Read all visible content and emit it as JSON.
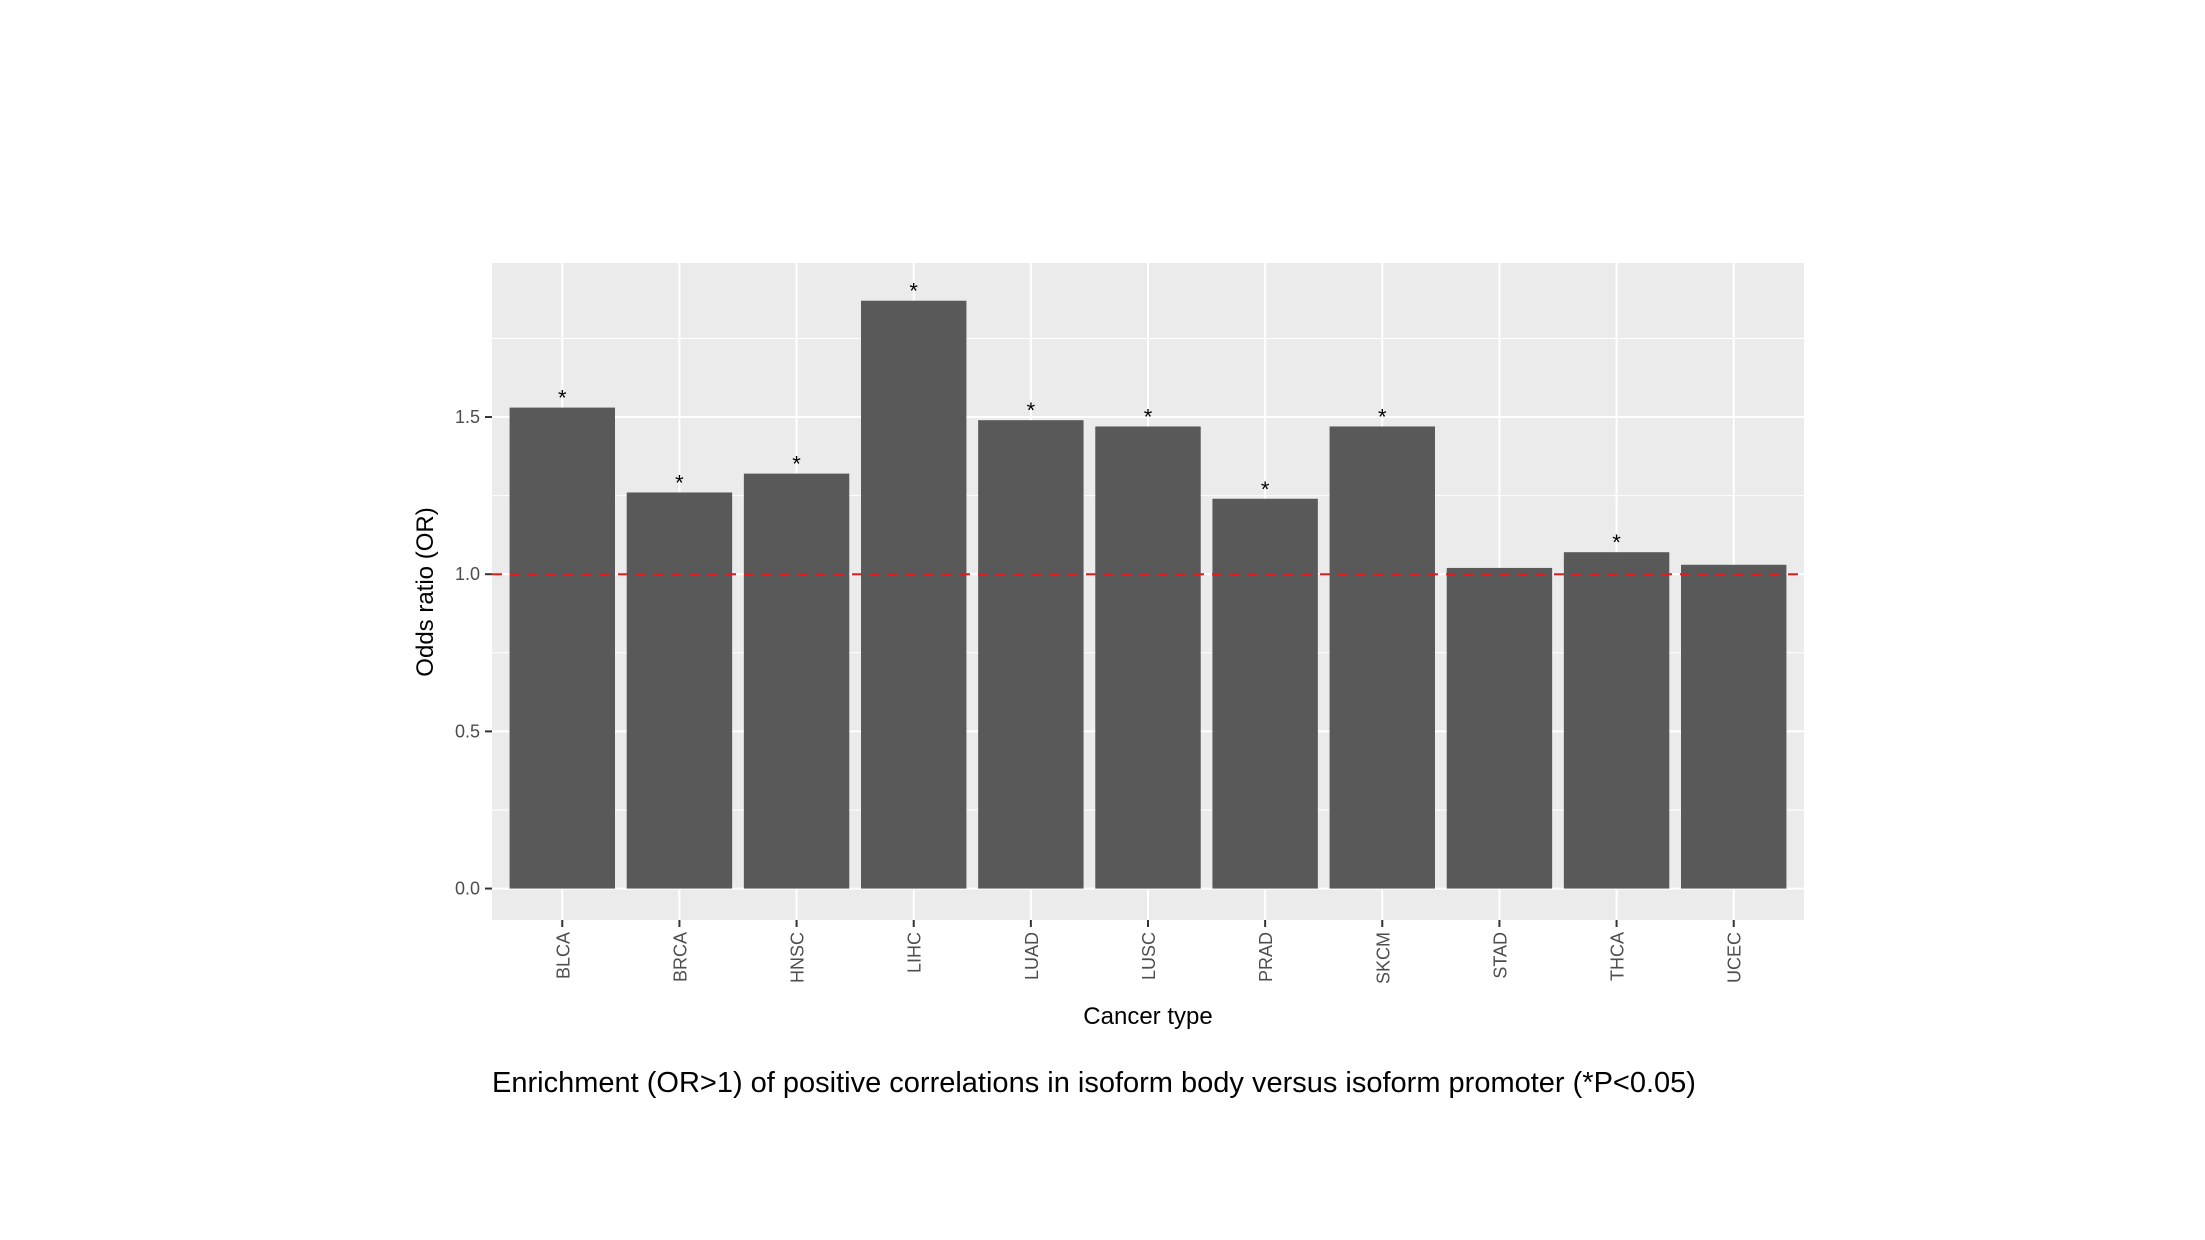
{
  "chart_data": {
    "type": "bar",
    "categories": [
      "BLCA",
      "BRCA",
      "HNSC",
      "LIHC",
      "LUAD",
      "LUSC",
      "PRAD",
      "SKCM",
      "STAD",
      "THCA",
      "UCEC"
    ],
    "values": [
      1.53,
      1.26,
      1.32,
      1.87,
      1.49,
      1.47,
      1.24,
      1.47,
      1.02,
      1.07,
      1.03
    ],
    "significance": [
      "*",
      "*",
      "*",
      "*",
      "*",
      "*",
      "*",
      "*",
      "",
      "*",
      ""
    ],
    "xlabel": "Cancer type",
    "ylabel": "Odds ratio (OR)",
    "ylim": [
      -0.1,
      1.99
    ],
    "yticks": [
      0.0,
      0.5,
      1.0,
      1.5
    ],
    "ytick_labels": [
      "0.0",
      "0.5",
      "1.0",
      "1.5"
    ],
    "reference_line": {
      "value": 1.0,
      "style": "dashed",
      "color": "#e41a1c"
    },
    "grid": true,
    "legend": "none",
    "colors": {
      "bar": "#595959",
      "panel": "#ebebeb",
      "grid": "#ffffff",
      "reference_line": "#e41a1c",
      "tick": "#333333"
    }
  },
  "caption": "Enrichment (OR>1) of positive correlations in isoform body versus isoform promoter (*P<0.05)"
}
